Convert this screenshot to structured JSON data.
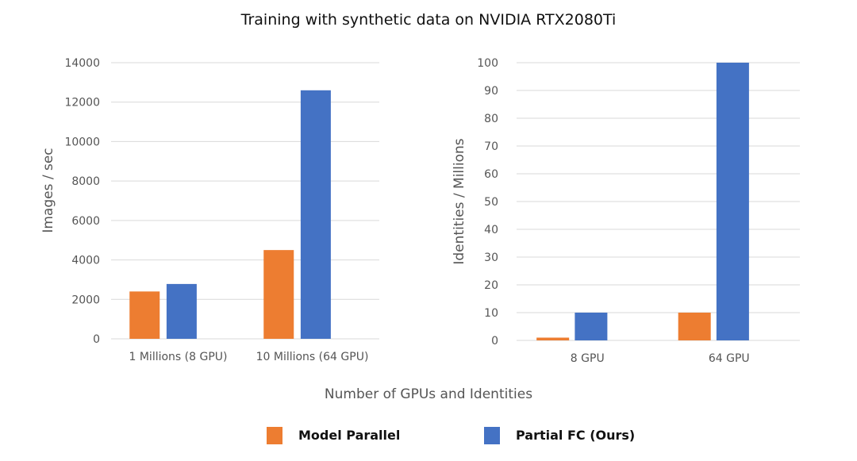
{
  "title": "Training with synthetic data on NVIDIA RTX2080Ti",
  "xlabel": "Number of GPUs and Identities",
  "colors": {
    "model_parallel": "#ED7D31",
    "partial_fc": "#4472C4"
  },
  "legend": [
    {
      "label": "Model Parallel",
      "color": "#ED7D31"
    },
    {
      "label": "Partial FC (Ours)",
      "color": "#4472C4"
    }
  ],
  "chart_data": [
    {
      "type": "bar",
      "categories": [
        "1 Millions (8 GPU)",
        "10 Millions (64 GPU)"
      ],
      "series": [
        {
          "name": "Model Parallel",
          "values": [
            2400,
            4500
          ]
        },
        {
          "name": "Partial FC (Ours)",
          "values": [
            2780,
            12600
          ]
        }
      ],
      "ylabel": "Images / sec",
      "ylim": [
        0,
        14000
      ],
      "yticks": [
        0,
        2000,
        4000,
        6000,
        8000,
        10000,
        12000,
        14000
      ],
      "grid": true,
      "legend": "bottom"
    },
    {
      "type": "bar",
      "categories": [
        "8 GPU",
        "64 GPU"
      ],
      "series": [
        {
          "name": "Model Parallel",
          "values": [
            1,
            10
          ]
        },
        {
          "name": "Partial FC (Ours)",
          "values": [
            10,
            100
          ]
        }
      ],
      "ylabel": "Identities / Millions",
      "ylim": [
        0,
        100
      ],
      "yticks": [
        0,
        10,
        20,
        30,
        40,
        50,
        60,
        70,
        80,
        90,
        100
      ],
      "grid": true,
      "legend": "bottom"
    }
  ]
}
